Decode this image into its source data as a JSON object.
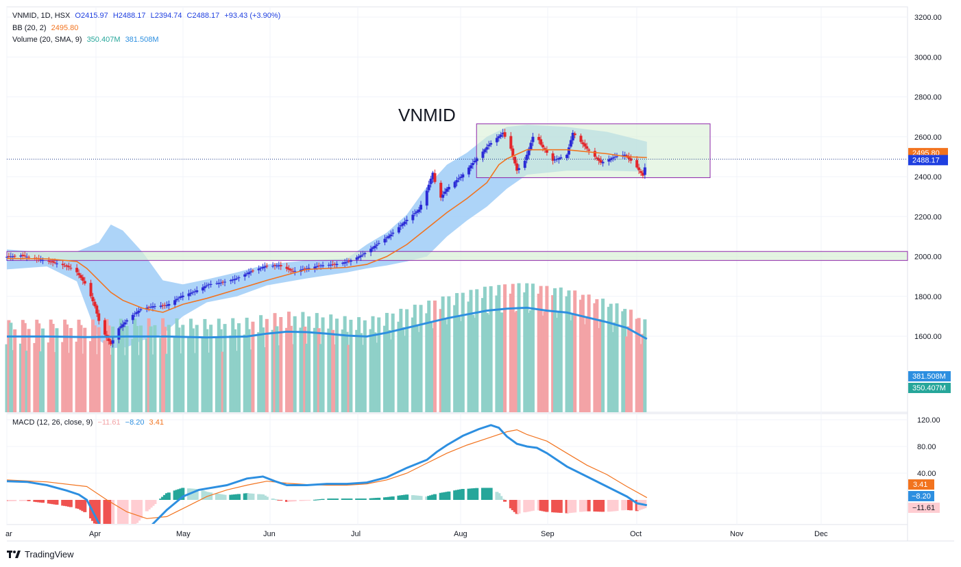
{
  "legend": {
    "symbol": "VNMID, 1D, HSX",
    "open": "O2415.97",
    "high": "H2488.17",
    "low": "L2394.74",
    "close": "C2488.17",
    "change": "+93.43 (+3.90%)",
    "bb_label": "BB (20, 2)",
    "bb_value": "2495.80",
    "vol_label": "Volume (20, SMA, 9)",
    "vol_value": "350.407M",
    "vol_sma_value": "381.508M",
    "macd_label": "MACD (12, 26, close, 9)",
    "macd_hist": "−11.61",
    "macd_line": "−8.20",
    "macd_signal": "3.41"
  },
  "annotation": "VNMID",
  "footer": "TradingView",
  "colors": {
    "up": "#2b2bd6",
    "down": "#e3262b",
    "bb_fill": "#9fcdf7",
    "bb_basis": "#f2731e",
    "zone_fill": "#d9f0d6",
    "zone_border": "#8e24aa",
    "vol_up": "#8fd0c8",
    "vol_down": "#f3a3a6",
    "vol_sma": "#2d8fe0",
    "macd": "#2d8fe0",
    "signal": "#f2731e",
    "hist_up_strong": "#26a69a",
    "hist_up_weak": "#b2dfdb",
    "hist_down_strong": "#ef5350",
    "hist_down_weak": "#ffcdd2"
  },
  "chart_data": {
    "type": "candlestick",
    "x_axis": [
      "ar",
      "Apr",
      "May",
      "Jun",
      "Jul",
      "Aug",
      "Sep",
      "Oct",
      "Nov",
      "Dec"
    ],
    "price_axis": [
      "3200.00",
      "3000.00",
      "2800.00",
      "2600.00",
      "2400.00",
      "2200.00",
      "2000.00",
      "1800.00",
      "1600.00"
    ],
    "price_ylim": [
      1500,
      3225
    ],
    "price_badges": {
      "bb": "2495.80",
      "last": "2488.17"
    },
    "volume_badges": {
      "sma": "381.508M",
      "volume": "350.407M"
    },
    "macd_axis": [
      "120.00",
      "80.00",
      "40.00"
    ],
    "macd_ylim": [
      -35,
      128
    ],
    "macd_badges": {
      "signal": "3.41",
      "macd": "−8.20",
      "hist": "−11.61"
    },
    "last_close": 2488.17,
    "support_zone": [
      1980,
      2025
    ],
    "range_box": {
      "from": "Aug 13",
      "to": "Oct 24",
      "low": 2395,
      "high": 2665
    },
    "series": [
      {
        "name": "Price",
        "points": [
          [
            0,
            1998
          ],
          [
            7,
            2005
          ],
          [
            14,
            1990
          ],
          [
            21,
            1975
          ],
          [
            27,
            1960
          ],
          [
            34,
            1935
          ],
          [
            40,
            1850
          ],
          [
            44,
            1750
          ],
          [
            47,
            1640
          ],
          [
            52,
            1560
          ],
          [
            56,
            1640
          ],
          [
            62,
            1700
          ],
          [
            67,
            1735
          ],
          [
            73,
            1750
          ],
          [
            80,
            1755
          ],
          [
            87,
            1800
          ],
          [
            94,
            1825
          ],
          [
            101,
            1860
          ],
          [
            108,
            1870
          ],
          [
            115,
            1890
          ],
          [
            122,
            1925
          ],
          [
            129,
            1950
          ],
          [
            136,
            1955
          ],
          [
            143,
            1925
          ],
          [
            150,
            1940
          ],
          [
            157,
            1955
          ],
          [
            164,
            1960
          ],
          [
            171,
            1975
          ],
          [
            178,
            2010
          ],
          [
            185,
            2060
          ],
          [
            192,
            2110
          ],
          [
            199,
            2175
          ],
          [
            206,
            2235
          ],
          [
            210,
            2330
          ],
          [
            213,
            2420
          ],
          [
            216,
            2280
          ],
          [
            220,
            2340
          ],
          [
            227,
            2400
          ],
          [
            234,
            2480
          ],
          [
            241,
            2560
          ],
          [
            248,
            2620
          ],
          [
            252,
            2540
          ],
          [
            255,
            2430
          ],
          [
            259,
            2480
          ],
          [
            264,
            2630
          ],
          [
            267,
            2560
          ],
          [
            273,
            2480
          ],
          [
            280,
            2510
          ],
          [
            283,
            2620
          ],
          [
            290,
            2540
          ],
          [
            297,
            2470
          ],
          [
            304,
            2500
          ],
          [
            309,
            2510
          ],
          [
            314,
            2460
          ],
          [
            318,
            2405
          ],
          [
            320,
            2488
          ]
        ]
      },
      {
        "name": "BB upper",
        "points": [
          [
            0,
            2035
          ],
          [
            20,
            2020
          ],
          [
            35,
            2025
          ],
          [
            46,
            2070
          ],
          [
            52,
            2160
          ],
          [
            58,
            2130
          ],
          [
            68,
            2020
          ],
          [
            78,
            1880
          ],
          [
            88,
            1860
          ],
          [
            100,
            1885
          ],
          [
            115,
            1920
          ],
          [
            130,
            1960
          ],
          [
            150,
            1980
          ],
          [
            170,
            1990
          ],
          [
            180,
            2060
          ],
          [
            190,
            2120
          ],
          [
            200,
            2210
          ],
          [
            210,
            2350
          ],
          [
            220,
            2460
          ],
          [
            230,
            2520
          ],
          [
            240,
            2600
          ],
          [
            250,
            2650
          ],
          [
            260,
            2660
          ],
          [
            280,
            2650
          ],
          [
            300,
            2625
          ],
          [
            320,
            2575
          ]
        ]
      },
      {
        "name": "BB lower",
        "points": [
          [
            0,
            1935
          ],
          [
            20,
            1950
          ],
          [
            35,
            1875
          ],
          [
            46,
            1580
          ],
          [
            52,
            1540
          ],
          [
            60,
            1545
          ],
          [
            68,
            1580
          ],
          [
            78,
            1610
          ],
          [
            88,
            1700
          ],
          [
            100,
            1770
          ],
          [
            115,
            1800
          ],
          [
            130,
            1855
          ],
          [
            150,
            1890
          ],
          [
            170,
            1920
          ],
          [
            180,
            1940
          ],
          [
            190,
            1955
          ],
          [
            200,
            1975
          ],
          [
            210,
            2000
          ],
          [
            220,
            2100
          ],
          [
            230,
            2180
          ],
          [
            240,
            2250
          ],
          [
            250,
            2340
          ],
          [
            260,
            2410
          ],
          [
            280,
            2430
          ],
          [
            300,
            2430
          ],
          [
            320,
            2425
          ]
        ]
      },
      {
        "name": "BB basis",
        "points": [
          [
            0,
            1990
          ],
          [
            20,
            1988
          ],
          [
            35,
            1975
          ],
          [
            40,
            1940
          ],
          [
            46,
            1880
          ],
          [
            52,
            1820
          ],
          [
            58,
            1780
          ],
          [
            68,
            1740
          ],
          [
            78,
            1720
          ],
          [
            88,
            1760
          ],
          [
            100,
            1790
          ],
          [
            115,
            1835
          ],
          [
            130,
            1880
          ],
          [
            150,
            1935
          ],
          [
            170,
            1945
          ],
          [
            180,
            1960
          ],
          [
            190,
            2000
          ],
          [
            200,
            2060
          ],
          [
            210,
            2140
          ],
          [
            220,
            2220
          ],
          [
            230,
            2290
          ],
          [
            240,
            2370
          ],
          [
            246,
            2460
          ],
          [
            250,
            2490
          ],
          [
            260,
            2535
          ],
          [
            280,
            2535
          ],
          [
            300,
            2515
          ],
          [
            310,
            2500
          ],
          [
            320,
            2496
          ]
        ]
      },
      {
        "name": "Volume SMA",
        "points": [
          [
            0,
            395
          ],
          [
            20,
            395
          ],
          [
            40,
            392
          ],
          [
            60,
            395
          ],
          [
            80,
            395
          ],
          [
            100,
            390
          ],
          [
            120,
            395
          ],
          [
            130,
            410
          ],
          [
            140,
            420
          ],
          [
            150,
            418
          ],
          [
            160,
            410
          ],
          [
            170,
            400
          ],
          [
            180,
            395
          ],
          [
            190,
            415
          ],
          [
            200,
            440
          ],
          [
            210,
            465
          ],
          [
            220,
            490
          ],
          [
            230,
            510
          ],
          [
            240,
            530
          ],
          [
            250,
            540
          ],
          [
            260,
            545
          ],
          [
            270,
            530
          ],
          [
            280,
            520
          ],
          [
            290,
            495
          ],
          [
            300,
            470
          ],
          [
            310,
            440
          ],
          [
            320,
            382
          ]
        ]
      },
      {
        "name": "MACD",
        "points": [
          [
            0,
            28
          ],
          [
            10,
            27
          ],
          [
            20,
            22
          ],
          [
            30,
            14
          ],
          [
            36,
            8
          ],
          [
            40,
            0
          ],
          [
            46,
            -35
          ],
          [
            52,
            -70
          ],
          [
            60,
            -70
          ],
          [
            70,
            -45
          ],
          [
            80,
            -15
          ],
          [
            88,
            5
          ],
          [
            96,
            15
          ],
          [
            110,
            22
          ],
          [
            120,
            32
          ],
          [
            128,
            35
          ],
          [
            134,
            28
          ],
          [
            140,
            22
          ],
          [
            150,
            22
          ],
          [
            160,
            24
          ],
          [
            170,
            24
          ],
          [
            180,
            26
          ],
          [
            190,
            34
          ],
          [
            200,
            48
          ],
          [
            210,
            60
          ],
          [
            215,
            72
          ],
          [
            220,
            82
          ],
          [
            228,
            96
          ],
          [
            236,
            106
          ],
          [
            242,
            112
          ],
          [
            246,
            108
          ],
          [
            250,
            95
          ],
          [
            255,
            84
          ],
          [
            260,
            80
          ],
          [
            265,
            78
          ],
          [
            270,
            70
          ],
          [
            280,
            50
          ],
          [
            290,
            35
          ],
          [
            300,
            20
          ],
          [
            310,
            5
          ],
          [
            315,
            -5
          ],
          [
            320,
            -8
          ]
        ]
      },
      {
        "name": "Signal",
        "points": [
          [
            0,
            30
          ],
          [
            20,
            27
          ],
          [
            40,
            20
          ],
          [
            50,
            0
          ],
          [
            60,
            -18
          ],
          [
            70,
            -28
          ],
          [
            80,
            -25
          ],
          [
            90,
            -10
          ],
          [
            100,
            5
          ],
          [
            110,
            15
          ],
          [
            120,
            22
          ],
          [
            130,
            28
          ],
          [
            140,
            25
          ],
          [
            150,
            23
          ],
          [
            160,
            22
          ],
          [
            170,
            22
          ],
          [
            180,
            24
          ],
          [
            190,
            30
          ],
          [
            200,
            40
          ],
          [
            210,
            55
          ],
          [
            220,
            70
          ],
          [
            230,
            82
          ],
          [
            240,
            92
          ],
          [
            250,
            102
          ],
          [
            255,
            105
          ],
          [
            260,
            98
          ],
          [
            270,
            88
          ],
          [
            280,
            70
          ],
          [
            290,
            52
          ],
          [
            300,
            38
          ],
          [
            310,
            20
          ],
          [
            320,
            3.4
          ]
        ]
      }
    ]
  }
}
